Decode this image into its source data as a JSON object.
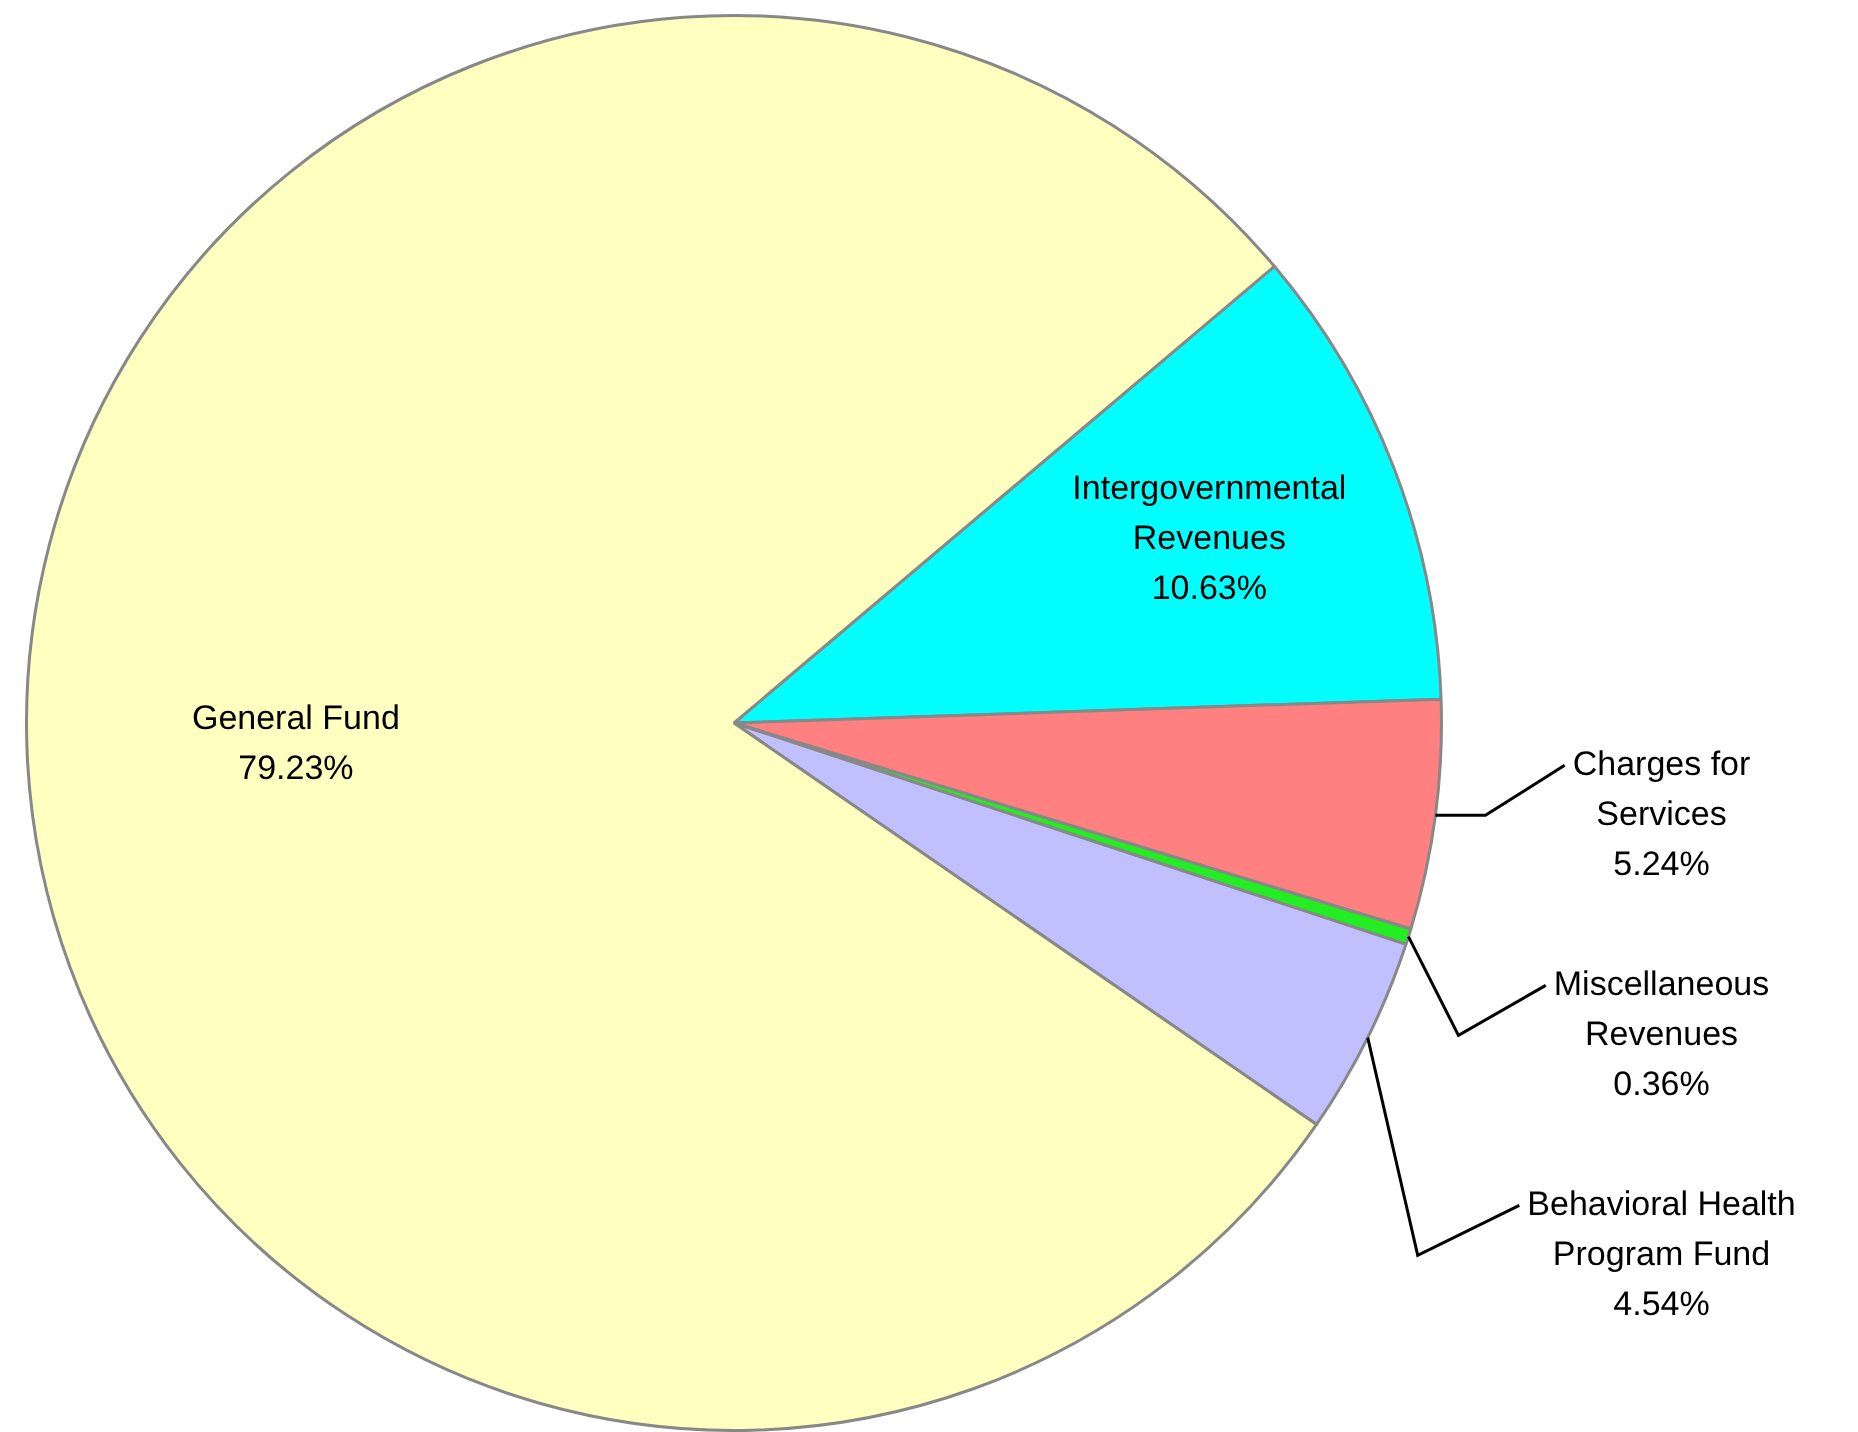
{
  "chart_data": {
    "type": "pie",
    "categories": [
      "Intergovernmental Revenues",
      "Charges for Services",
      "Miscellaneous Revenues",
      "Behavioral Health Program Fund",
      "General Fund"
    ],
    "values": [
      10.63,
      5.24,
      0.36,
      4.54,
      79.23
    ],
    "colors": [
      "#00ffff",
      "#ff8080",
      "#22ee22",
      "#c0c0ff",
      "#ffffc0"
    ],
    "value_labels": [
      "10.63%",
      "5.24%",
      "0.36%",
      "4.54%",
      "79.23%"
    ]
  }
}
